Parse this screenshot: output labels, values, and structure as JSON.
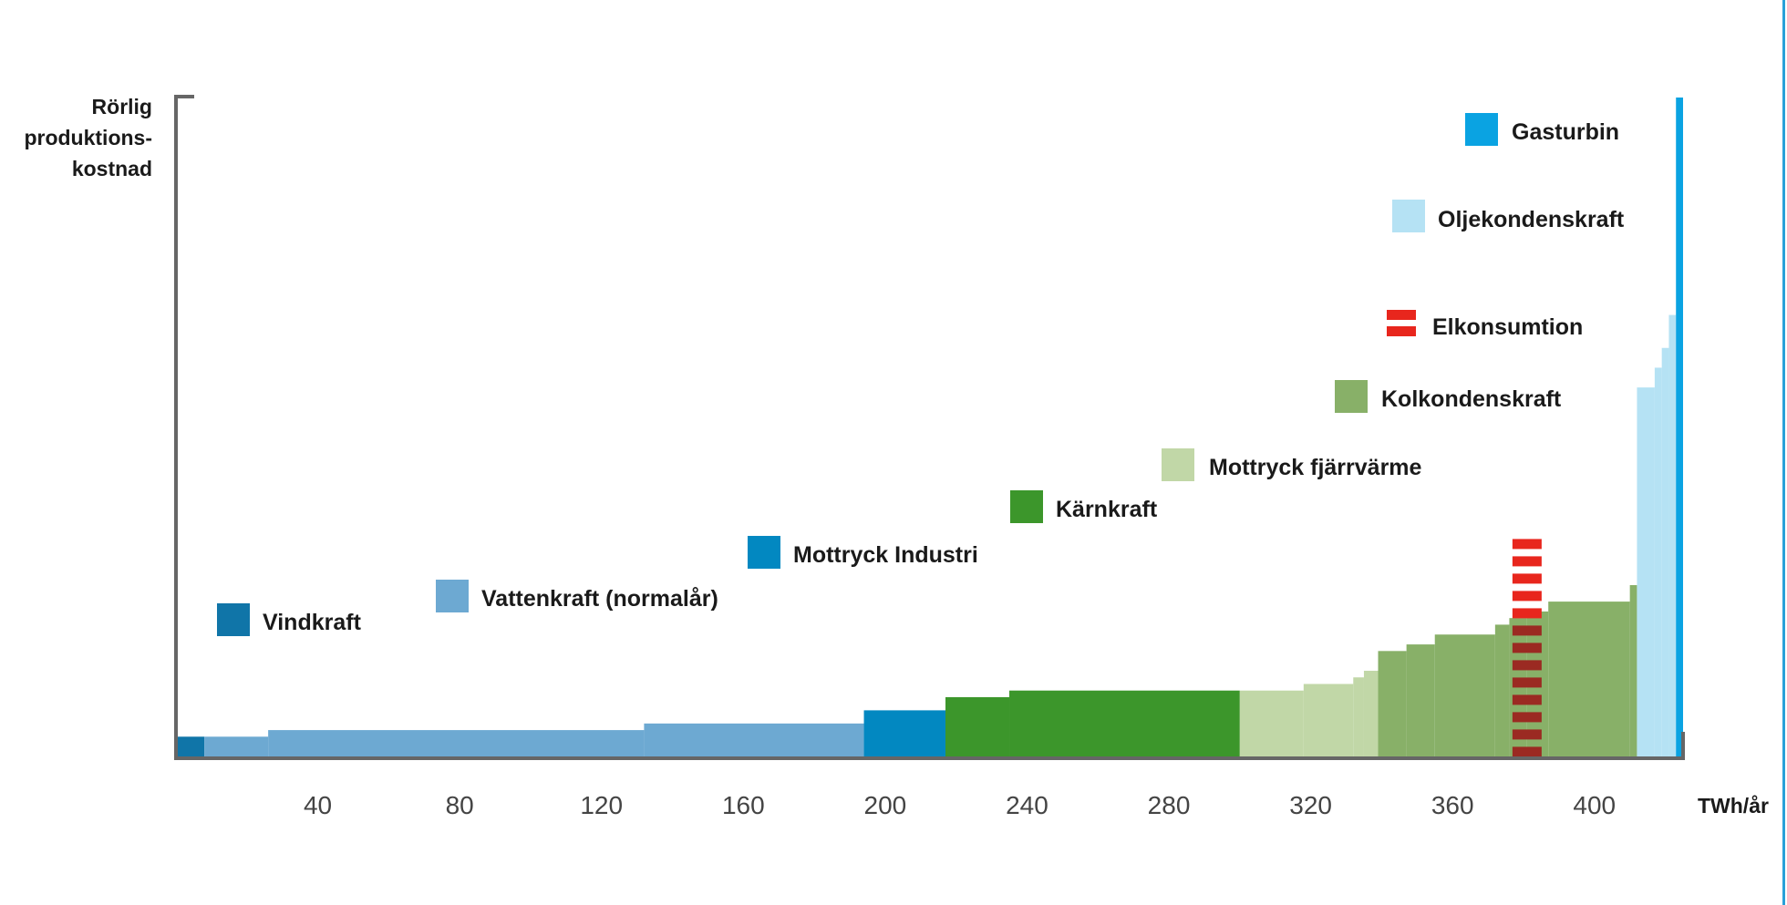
{
  "chart_data": {
    "type": "bar",
    "subtype": "step-area",
    "ylabel_lines": [
      "Rörlig",
      "produktions-",
      "kostnad"
    ],
    "xlabel": "TWh/år",
    "xlim": [
      0,
      425
    ],
    "ylim": [
      0,
      100
    ],
    "y_ticks_shown": false,
    "x_ticks": [
      40,
      80,
      120,
      160,
      200,
      240,
      280,
      320,
      360,
      400
    ],
    "legend": [
      {
        "key": "vind",
        "label": "Vindkraft",
        "color": "#1075a8"
      },
      {
        "key": "vatten",
        "label": "Vattenkraft (normalår)",
        "color": "#6da9d2"
      },
      {
        "key": "industri",
        "label": "Mottryck Industri",
        "color": "#0288c1"
      },
      {
        "key": "karn",
        "label": "Kärnkraft",
        "color": "#3c962b"
      },
      {
        "key": "fjarr",
        "label": "Mottryck fjärrvärme",
        "color": "#c1d7a7"
      },
      {
        "key": "kol",
        "label": "Kolkondenskraft",
        "color": "#88b068"
      },
      {
        "key": "elkon",
        "label": "Elkonsumtion",
        "color": "#e8261d"
      },
      {
        "key": "olje",
        "label": "Oljekondenskraft",
        "color": "#b5e2f4"
      },
      {
        "key": "gas",
        "label": "Gasturbin",
        "color": "#0aa3e2"
      }
    ],
    "series": [
      {
        "key": "vind",
        "segments": [
          [
            0,
            8,
            3
          ]
        ]
      },
      {
        "key": "vatten",
        "segments": [
          [
            8,
            26,
            3
          ],
          [
            26,
            132,
            4
          ],
          [
            132,
            194,
            5
          ]
        ]
      },
      {
        "key": "industri",
        "segments": [
          [
            194,
            217,
            7
          ]
        ]
      },
      {
        "key": "karn",
        "segments": [
          [
            217,
            235,
            9
          ],
          [
            235,
            300,
            10
          ]
        ]
      },
      {
        "key": "fjarr",
        "segments": [
          [
            300,
            318,
            10
          ],
          [
            318,
            332,
            11
          ],
          [
            332,
            335,
            12
          ],
          [
            335,
            339,
            13
          ]
        ]
      },
      {
        "key": "kol",
        "segments": [
          [
            339,
            347,
            16
          ],
          [
            347,
            355,
            17
          ],
          [
            355,
            372,
            18.5
          ],
          [
            372,
            376,
            20
          ],
          [
            376,
            381,
            21
          ],
          [
            381,
            387,
            22
          ],
          [
            387,
            410,
            23.5
          ],
          [
            410,
            412,
            26
          ]
        ]
      },
      {
        "key": "olje",
        "segments": [
          [
            412,
            417,
            56
          ],
          [
            417,
            419,
            59
          ],
          [
            419,
            421,
            62
          ],
          [
            421,
            423,
            67
          ]
        ]
      },
      {
        "key": "gas",
        "segments": [
          [
            423,
            425,
            100
          ]
        ]
      }
    ],
    "elkonsumtion": {
      "x": 381,
      "ymax": 33
    }
  }
}
